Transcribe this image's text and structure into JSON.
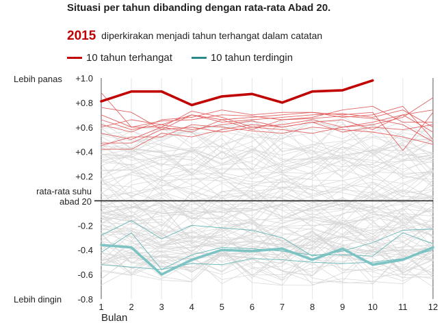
{
  "title": "Situasi per tahun dibanding dengan rata-rata Abad 20.",
  "subtitle": {
    "year": "2015",
    "text": "diperkirakan menjadi tahun terhangat dalam catatan"
  },
  "legend": [
    {
      "label": "10 tahun terhangat",
      "color": "#c00000"
    },
    {
      "label": "10 tahun terdingin",
      "color": "#2a8a8a"
    }
  ],
  "labels": {
    "warmer": "Lebih panas",
    "colder": "Lebih dingin",
    "baseline_line1": "rata-rata suhu",
    "baseline_line2": "abad 20",
    "xlabel": "Bulan"
  },
  "colors": {
    "highlight_warm": "#c00000",
    "warm": "#e05a5a",
    "highlight_cold": "#7cc3c3",
    "cold": "#5fb2b2",
    "other": "#d6d6d6",
    "baseline": "#222222"
  },
  "chart_data": {
    "type": "line",
    "x": [
      1,
      2,
      3,
      4,
      5,
      6,
      7,
      8,
      9,
      10,
      11,
      12
    ],
    "xlabel": "Bulan",
    "ylim": [
      -0.8,
      1.0
    ],
    "yticks": [
      "+1.0",
      "+0.8",
      "+0.6",
      "+0.4",
      "+0.2",
      "",
      "-0.2",
      "-0.4",
      "-0.6",
      "-0.8"
    ],
    "ytick_values": [
      1.0,
      0.8,
      0.6,
      0.4,
      0.2,
      0.0,
      -0.2,
      -0.4,
      -0.6,
      -0.8
    ],
    "baseline": 0,
    "highlight_warm": {
      "values": [
        0.81,
        0.89,
        0.89,
        0.78,
        0.85,
        0.87,
        0.8,
        0.89,
        0.9,
        0.98
      ]
    },
    "highlight_cold": {
      "values": [
        -0.36,
        -0.38,
        -0.6,
        -0.48,
        -0.4,
        -0.41,
        -0.39,
        -0.48,
        -0.39,
        -0.52,
        -0.48,
        -0.38
      ]
    },
    "warm_series": [
      {
        "values": [
          0.66,
          0.58,
          0.62,
          0.7,
          0.64,
          0.66,
          0.68,
          0.7,
          0.71,
          0.68,
          0.74,
          0.6
        ]
      },
      {
        "values": [
          0.7,
          0.6,
          0.65,
          0.66,
          0.7,
          0.69,
          0.66,
          0.67,
          0.69,
          0.67,
          0.62,
          0.48
        ]
      },
      {
        "values": [
          0.55,
          0.5,
          0.6,
          0.73,
          0.68,
          0.6,
          0.62,
          0.66,
          0.6,
          0.64,
          0.7,
          0.74
        ]
      },
      {
        "values": [
          0.47,
          0.47,
          0.58,
          0.6,
          0.56,
          0.6,
          0.58,
          0.55,
          0.6,
          0.62,
          0.68,
          0.84
        ]
      },
      {
        "values": [
          0.42,
          0.42,
          0.55,
          0.52,
          0.58,
          0.62,
          0.6,
          0.64,
          0.56,
          0.6,
          0.58,
          0.62
        ]
      },
      {
        "values": [
          0.88,
          0.6,
          0.6,
          0.56,
          0.66,
          0.68,
          0.7,
          0.72,
          0.68,
          0.7,
          0.77,
          0.5
        ]
      },
      {
        "values": [
          0.62,
          0.56,
          0.66,
          0.68,
          0.74,
          0.7,
          0.72,
          0.72,
          0.7,
          0.72,
          0.41,
          0.72
        ]
      },
      {
        "values": [
          0.76,
          0.72,
          0.58,
          0.7,
          0.66,
          0.58,
          0.66,
          0.68,
          0.74,
          0.77,
          0.64,
          0.64
        ]
      },
      {
        "values": [
          0.6,
          0.66,
          0.62,
          0.58,
          0.62,
          0.65,
          0.6,
          0.64,
          0.66,
          0.58,
          0.7,
          0.56
        ]
      },
      {
        "values": [
          0.45,
          0.52,
          0.52,
          0.62,
          0.6,
          0.57,
          0.55,
          0.6,
          0.58,
          0.56,
          0.52,
          0.46
        ]
      }
    ],
    "cold_series": [
      {
        "values": [
          -0.52,
          -0.54,
          -0.56,
          -0.51,
          -0.52,
          -0.47,
          -0.48,
          -0.5,
          -0.51,
          -0.5,
          -0.47,
          -0.4
        ]
      },
      {
        "values": [
          -0.28,
          -0.16,
          -0.31,
          -0.2,
          -0.22,
          -0.24,
          -0.3,
          -0.45,
          -0.41,
          -0.34,
          -0.24,
          -0.23
        ]
      },
      {
        "values": [
          -0.42,
          -0.26,
          -0.56,
          -0.44,
          -0.38,
          -0.39,
          -0.41,
          -0.44,
          -0.44,
          -0.45,
          -0.26,
          -0.35
        ]
      }
    ]
  }
}
